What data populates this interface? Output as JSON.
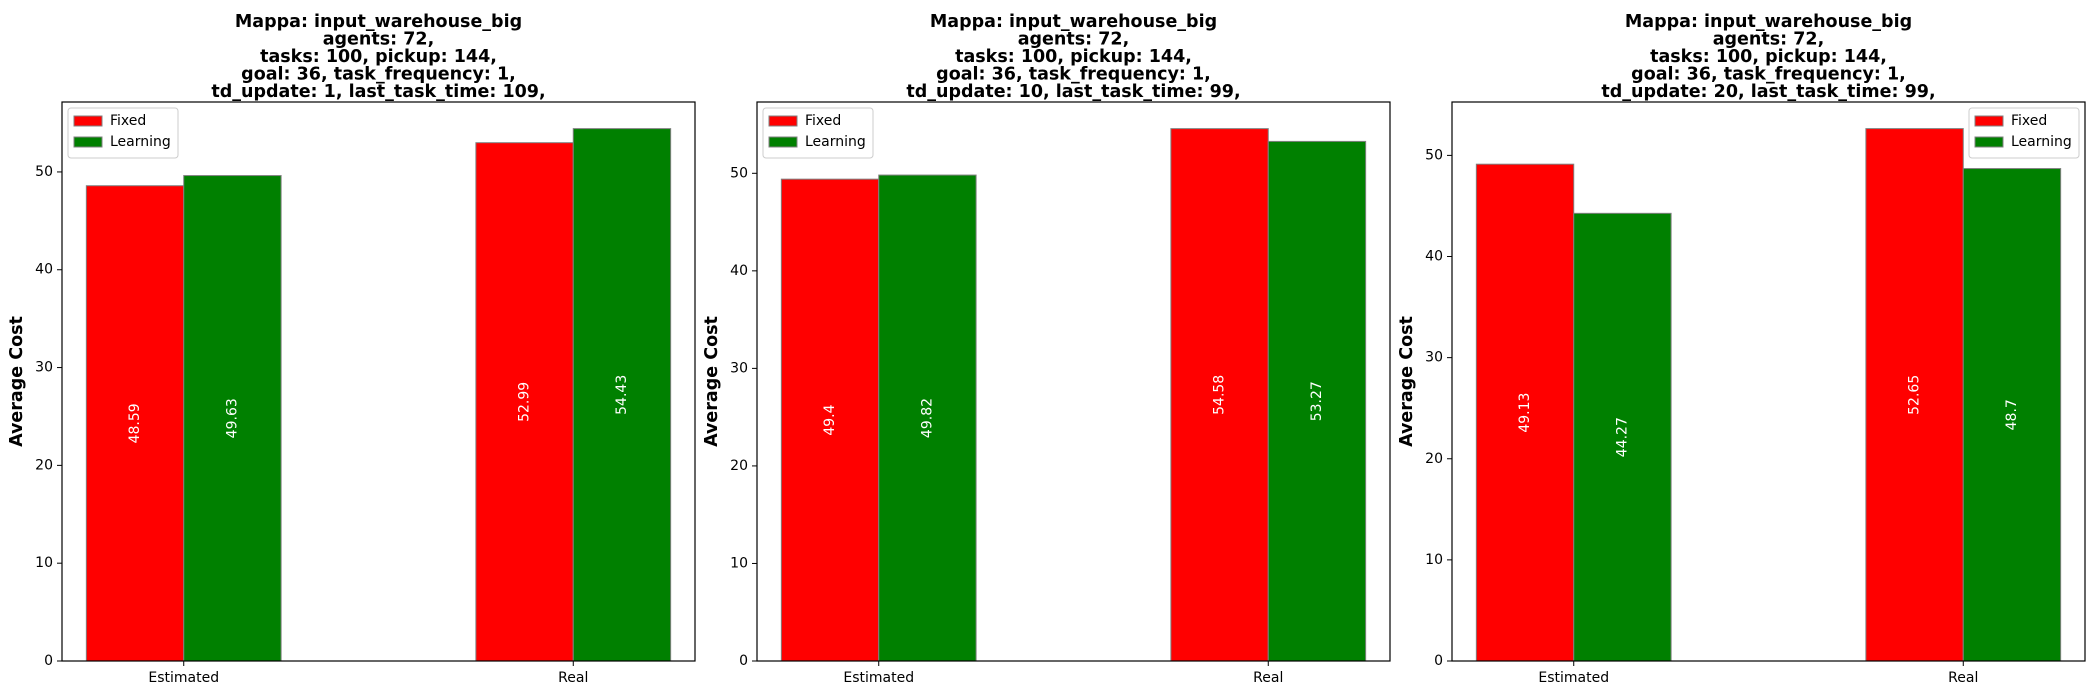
{
  "colors": {
    "fixed": "#ff0000",
    "learning": "#008000",
    "bar_edge": "#808080"
  },
  "chart_data": [
    {
      "type": "bar",
      "title": "Mappa: input_warehouse_big\nagents: 72,\ntasks: 100, pickup: 144,\ngoal: 36, task_frequency: 1,\ntd_update: 1, last_task_time: 109,",
      "ylabel": "Average Cost",
      "xlabel": "",
      "categories": [
        "Estimated",
        "Real"
      ],
      "series": [
        {
          "name": "Fixed",
          "color": "#ff0000",
          "values": [
            48.59,
            52.99
          ],
          "labels": [
            "48.59",
            "52.99"
          ]
        },
        {
          "name": "Learning",
          "color": "#008000",
          "values": [
            49.63,
            54.43
          ],
          "labels": [
            "49.63",
            "54.43"
          ]
        }
      ],
      "ylim": [
        0,
        57.15
      ],
      "yticks": [
        0,
        10,
        20,
        30,
        40,
        50
      ],
      "legend_loc": "upper-left",
      "grid": false
    },
    {
      "type": "bar",
      "title": "Mappa: input_warehouse_big\nagents: 72,\ntasks: 100, pickup: 144,\ngoal: 36, task_frequency: 1,\ntd_update: 10, last_task_time: 99,",
      "ylabel": "Average Cost",
      "xlabel": "",
      "categories": [
        "Estimated",
        "Real"
      ],
      "series": [
        {
          "name": "Fixed",
          "color": "#ff0000",
          "values": [
            49.4,
            54.58
          ],
          "labels": [
            "49.4",
            "54.58"
          ]
        },
        {
          "name": "Learning",
          "color": "#008000",
          "values": [
            49.82,
            53.27
          ],
          "labels": [
            "49.82",
            "53.27"
          ]
        }
      ],
      "ylim": [
        0,
        57.31
      ],
      "yticks": [
        0,
        10,
        20,
        30,
        40,
        50
      ],
      "legend_loc": "upper-left",
      "grid": false
    },
    {
      "type": "bar",
      "title": "Mappa: input_warehouse_big\nagents: 72,\ntasks: 100, pickup: 144,\ngoal: 36, task_frequency: 1,\ntd_update: 20, last_task_time: 99,",
      "ylabel": "Average Cost",
      "xlabel": "",
      "categories": [
        "Estimated",
        "Real"
      ],
      "series": [
        {
          "name": "Fixed",
          "color": "#ff0000",
          "values": [
            49.13,
            52.65
          ],
          "labels": [
            "49.13",
            "52.65"
          ]
        },
        {
          "name": "Learning",
          "color": "#008000",
          "values": [
            44.27,
            48.7
          ],
          "labels": [
            "44.27",
            "48.7"
          ]
        }
      ],
      "ylim": [
        0,
        55.28
      ],
      "yticks": [
        0,
        10,
        20,
        30,
        40,
        50
      ],
      "legend_loc": "upper-right",
      "grid": false
    }
  ]
}
